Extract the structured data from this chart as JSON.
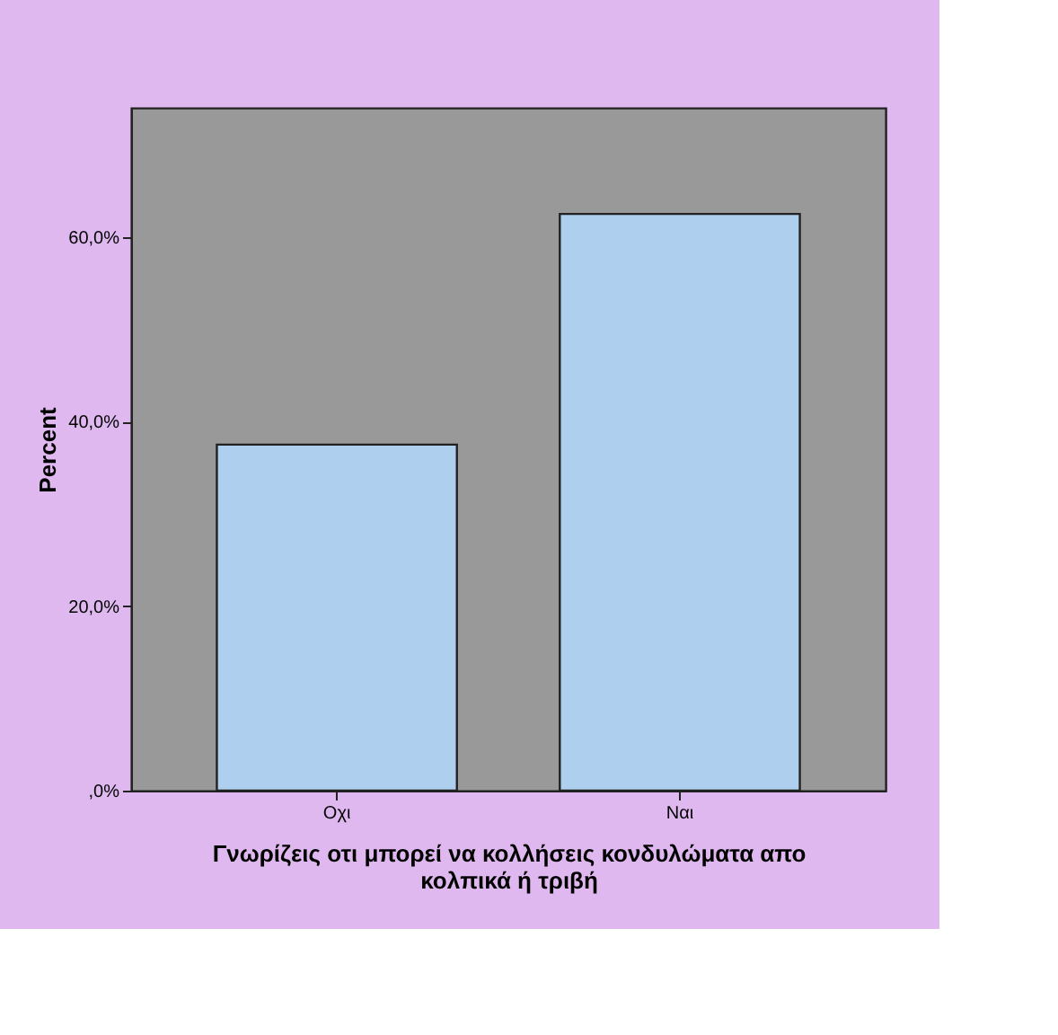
{
  "chart_data": {
    "type": "bar",
    "xlabel": "Γνωρίζεις οτι μπορεί να κολλήσεις κονδυλώματα απο κολπικά ή τριβή",
    "ylabel": "Percent",
    "categories": [
      "Οχι",
      "Ναι"
    ],
    "values": [
      37.5,
      62.5
    ],
    "color": "#aecfed",
    "ylim": [
      0,
      74
    ],
    "yticks": [
      {
        "value": 0,
        "label": ",0%"
      },
      {
        "value": 20,
        "label": "20,0%"
      },
      {
        "value": 40,
        "label": "40,0%"
      },
      {
        "value": 60,
        "label": "60,0%"
      }
    ],
    "grid": false
  }
}
